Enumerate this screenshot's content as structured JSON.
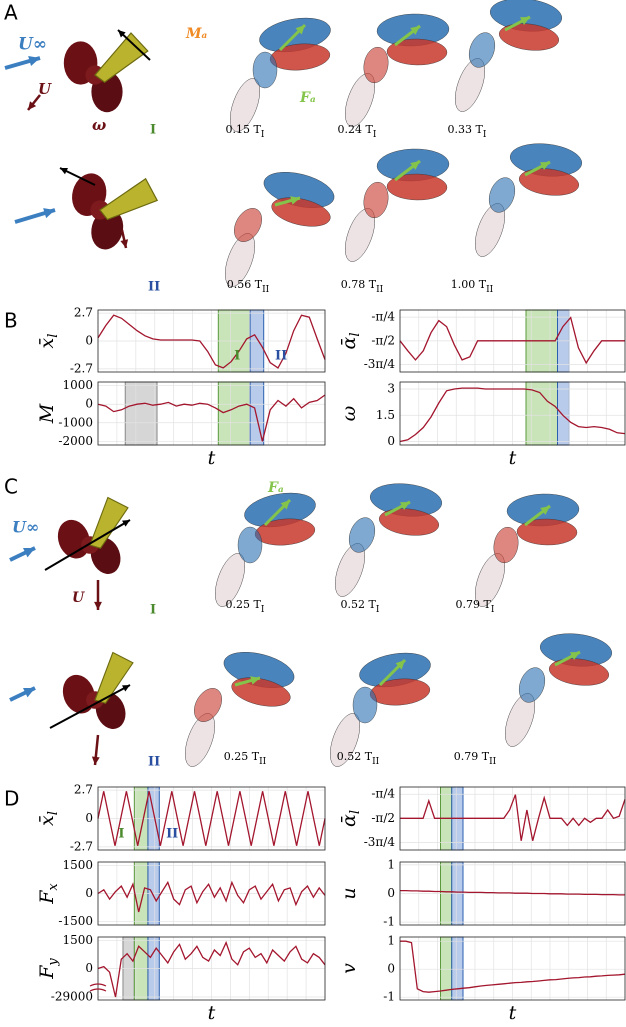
{
  "panels": [
    "A",
    "B",
    "C",
    "D"
  ],
  "labels": {
    "u_inf": "U∞",
    "u": "U",
    "omega": "ω",
    "m_a": "Mₐ",
    "f_a": "Fₐ",
    "phase_1": "I",
    "phase_2": "II"
  },
  "captions_a": [
    {
      "time": "0.15 T",
      "sub": "I"
    },
    {
      "time": "0.24 T",
      "sub": "I"
    },
    {
      "time": "0.33 T",
      "sub": "I"
    },
    {
      "time": "0.56 T",
      "sub": "II"
    },
    {
      "time": "0.78 T",
      "sub": "II"
    },
    {
      "time": "1.00 T",
      "sub": "II"
    }
  ],
  "captions_c": [
    {
      "time": "0.25 T",
      "sub": "I"
    },
    {
      "time": "0.52 T",
      "sub": "I"
    },
    {
      "time": "0.79 T",
      "sub": "I"
    },
    {
      "time": "0.25 T",
      "sub": "II"
    },
    {
      "time": "0.52 T",
      "sub": "II"
    },
    {
      "time": "0.79 T",
      "sub": "II"
    }
  ],
  "chart_data": [
    {
      "type": "line",
      "ylabel": "x̄",
      "ylabel_sub": "l",
      "color": "#a3162e",
      "ylim": [
        -3.0,
        3.0
      ],
      "yticks": [
        2.7,
        0,
        -2.7
      ],
      "values": [
        0.3,
        1.5,
        2.5,
        2.2,
        1.6,
        1.0,
        0.5,
        0.2,
        0.1,
        0.1,
        0.1,
        0.1,
        0.1,
        0.0,
        -1.0,
        -2.3,
        -2.6,
        -2.0,
        -1.0,
        0.2,
        0.6,
        -0.6,
        -2.1,
        -2.6,
        -1.2,
        1.0,
        2.5,
        2.3,
        0.2,
        -1.8
      ]
    },
    {
      "type": "line",
      "ylabel": "M",
      "xlabel": "t",
      "color": "#a3162e",
      "ylim": [
        -2200,
        1200
      ],
      "yticks": [
        1000,
        0,
        -1000,
        -2000
      ],
      "values": [
        0,
        -100,
        -400,
        -300,
        -100,
        0,
        50,
        -50,
        0,
        100,
        -100,
        0,
        -50,
        50,
        0,
        -200,
        -450,
        -300,
        -100,
        0,
        -200,
        -2000,
        -300,
        200,
        -100,
        300,
        -200,
        100,
        200,
        500
      ]
    },
    {
      "type": "line",
      "ylabel": "ᾱ",
      "ylabel_sub": "l",
      "color": "#a3162e",
      "ylim": [
        -2.6,
        -0.55
      ],
      "yticks": [
        {
          "value": -0.785,
          "label": "-π/4"
        },
        {
          "value": -1.571,
          "label": "-π/2"
        },
        {
          "value": -2.356,
          "label": "-3π/4"
        }
      ],
      "values": [
        -1.57,
        -1.9,
        -2.2,
        -1.9,
        -1.3,
        -0.9,
        -1.1,
        -1.7,
        -2.2,
        -2.1,
        -1.57,
        -1.57,
        -1.57,
        -1.57,
        -1.57,
        -1.57,
        -1.57,
        -1.57,
        -1.57,
        -1.57,
        -1.57,
        -1.1,
        -0.8,
        -1.8,
        -2.3,
        -1.9,
        -1.57,
        -1.57,
        -1.57,
        -1.57
      ]
    },
    {
      "type": "line",
      "ylabel": "ω",
      "xlabel": "t",
      "color": "#a3162e",
      "ylim": [
        -0.2,
        3.4
      ],
      "yticks": [
        3,
        1.5,
        0
      ],
      "values": [
        0,
        0.1,
        0.4,
        0.8,
        1.4,
        2.2,
        2.9,
        3.0,
        3.05,
        3.05,
        3.05,
        3.0,
        3.0,
        3.0,
        3.0,
        3.0,
        3.0,
        2.95,
        2.8,
        2.3,
        2.0,
        1.5,
        1.1,
        0.85,
        0.8,
        0.85,
        0.8,
        0.7,
        0.5,
        0.45
      ]
    },
    {
      "type": "line",
      "ylabel": "x̄",
      "ylabel_sub": "l",
      "color": "#a3162e",
      "ylim": [
        -3.0,
        3.0
      ],
      "yticks": [
        2.7,
        0,
        -2.7
      ],
      "values": [
        0,
        2.6,
        0,
        -2.6,
        0,
        2.6,
        0,
        -2.6,
        0,
        2.6,
        0,
        -2.6,
        0,
        2.6,
        0,
        -2.6,
        0,
        2.6,
        0,
        -2.6,
        0,
        2.6,
        0,
        -2.6,
        0,
        2.6,
        0,
        -2.6,
        0,
        2.6,
        0,
        -2.6,
        0,
        2.6,
        0,
        -2.6,
        0,
        2.6,
        0,
        -2.6,
        0
      ]
    },
    {
      "type": "line",
      "ylabel": "F",
      "ylabel_sub": "x",
      "color": "#a3162e",
      "ylim": [
        -1700,
        1700
      ],
      "yticks": [
        1500,
        0,
        -1500
      ],
      "values": [
        0,
        200,
        -300,
        100,
        400,
        -200,
        500,
        -1000,
        300,
        200,
        -400,
        100,
        600,
        -300,
        -600,
        200,
        400,
        -500,
        100,
        500,
        -200,
        300,
        -400,
        600,
        -100,
        -500,
        200,
        400,
        -300,
        100,
        500,
        -400,
        200,
        300,
        -600,
        100,
        400,
        -200,
        300,
        -100
      ]
    },
    {
      "type": "line",
      "ylabel": "F",
      "ylabel_sub": "y",
      "xlabel": "t",
      "color": "#a3162e",
      "ylim": [
        -1700,
        1700
      ],
      "axis_break": true,
      "yticks": [
        1500,
        0,
        -29000
      ],
      "values": [
        0,
        100,
        -200,
        -29000,
        500,
        800,
        400,
        1200,
        900,
        600,
        1100,
        700,
        300,
        900,
        1300,
        500,
        800,
        1200,
        600,
        400,
        1000,
        700,
        1400,
        500,
        200,
        900,
        1100,
        600,
        800,
        300,
        1000,
        700,
        400,
        900,
        1200,
        500,
        300,
        800,
        600,
        200
      ]
    },
    {
      "type": "line",
      "ylabel": "ᾱ",
      "ylabel_sub": "l",
      "color": "#a3162e",
      "ylim": [
        -2.6,
        -0.55
      ],
      "yticks": [
        {
          "value": -0.785,
          "label": "-π/4"
        },
        {
          "value": -1.571,
          "label": "-π/2"
        },
        {
          "value": -2.356,
          "label": "-3π/4"
        }
      ],
      "values": [
        -1.57,
        -1.57,
        -1.57,
        -1.57,
        -1.57,
        -1.0,
        -1.57,
        -1.57,
        -1.57,
        -1.57,
        -1.57,
        -1.57,
        -1.57,
        -1.57,
        -1.57,
        -1.57,
        -1.57,
        -1.57,
        -1.57,
        -1.3,
        -0.8,
        -2.3,
        -1.3,
        -2.3,
        -1.57,
        -0.9,
        -1.57,
        -1.57,
        -1.57,
        -1.8,
        -1.57,
        -1.8,
        -1.57,
        -1.7,
        -1.57,
        -1.57,
        -1.3,
        -1.57,
        -1.5,
        -0.95
      ]
    },
    {
      "type": "line",
      "ylabel": "u",
      "color": "#a3162e",
      "ylim": [
        -1.1,
        1.1
      ],
      "yticks": [
        1,
        0,
        -1
      ],
      "values": [
        0.1,
        0.1,
        0.09,
        0.09,
        0.08,
        0.08,
        0.07,
        0.07,
        0.06,
        0.06,
        0.05,
        0.05,
        0.04,
        0.04,
        0.04,
        0.03,
        0.03,
        0.02,
        0.02,
        0.02,
        0.01,
        0.01,
        0.01,
        0,
        0,
        0,
        -0.01,
        -0.01,
        -0.01,
        -0.02,
        -0.02,
        -0.02,
        -0.03,
        -0.03,
        -0.03,
        -0.04,
        -0.04,
        -0.04,
        -0.05,
        -0.05
      ]
    },
    {
      "type": "line",
      "ylabel": "v",
      "xlabel": "t",
      "color": "#a3162e",
      "ylim": [
        -1.1,
        1.15
      ],
      "yticks": [
        1,
        0,
        -1
      ],
      "values": [
        1,
        1,
        0.95,
        -0.7,
        -0.8,
        -0.82,
        -0.8,
        -0.78,
        -0.75,
        -0.72,
        -0.7,
        -0.68,
        -0.66,
        -0.63,
        -0.6,
        -0.58,
        -0.56,
        -0.54,
        -0.52,
        -0.5,
        -0.48,
        -0.47,
        -0.45,
        -0.44,
        -0.42,
        -0.4,
        -0.38,
        -0.37,
        -0.35,
        -0.33,
        -0.31,
        -0.3,
        -0.28,
        -0.27,
        -0.25,
        -0.24,
        -0.22,
        -0.21,
        -0.2,
        -0.18
      ]
    }
  ]
}
